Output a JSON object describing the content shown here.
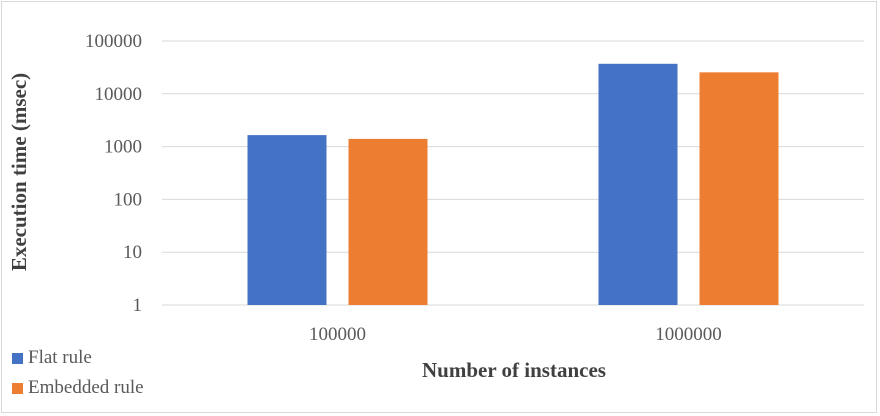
{
  "chart_data": {
    "type": "bar",
    "categories": [
      "100000",
      "1000000"
    ],
    "series": [
      {
        "name": "Flat rule",
        "values": [
          1650,
          37000
        ],
        "color": "#4472C4"
      },
      {
        "name": "Embedded rule",
        "values": [
          1400,
          25500
        ],
        "color": "#ED7D31"
      }
    ],
    "xlabel": "Number of instances",
    "ylabel": "Execution time (msec)",
    "yscale": "log",
    "ylim": [
      1,
      100000
    ],
    "yticks": [
      "1",
      "10",
      "100",
      "1000",
      "10000",
      "100000"
    ],
    "grid": true,
    "legend_position": "bottom-left"
  }
}
